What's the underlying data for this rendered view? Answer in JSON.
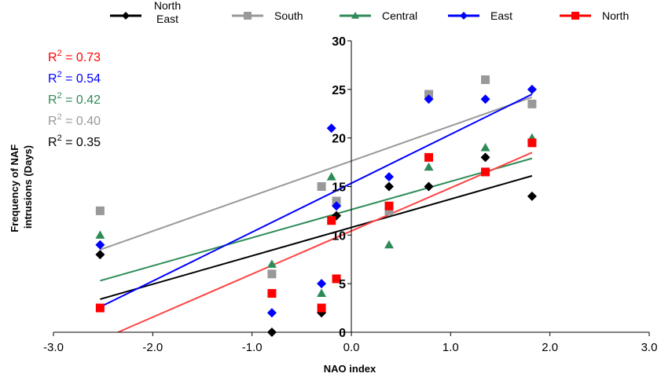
{
  "chart_data": {
    "type": "scatter",
    "xlabel": "NAO index",
    "ylabel": [
      "Frequency of NAF",
      "intrusions (Days)"
    ],
    "xlim": [
      -3.0,
      3.0
    ],
    "ylim": [
      0,
      30
    ],
    "xticks": [
      -3.0,
      -2.0,
      -1.0,
      0.0,
      1.0,
      2.0,
      3.0
    ],
    "xtick_labels": [
      "-3.0",
      "-2.0",
      "-1.0",
      "0.0",
      "1.0",
      "2.0",
      "3.0"
    ],
    "yticks": [
      0,
      5,
      10,
      15,
      20,
      25,
      30
    ],
    "ytick_labels": [
      "0",
      "5",
      "10",
      "15",
      "20",
      "25",
      "30"
    ],
    "grid": false,
    "legend_position": "top",
    "series": [
      {
        "name": "North East",
        "name_lines": [
          "North",
          "East"
        ],
        "color": "#000000",
        "marker": "diamond",
        "x": [
          -2.53,
          -0.8,
          -0.3,
          -0.15,
          0.38,
          0.78,
          1.35,
          1.82
        ],
        "y": [
          8,
          0,
          2,
          12,
          15,
          15,
          18,
          14
        ],
        "trend": {
          "x": [
            -2.53,
            1.82
          ],
          "y": [
            3.4,
            16.1
          ]
        },
        "r2_label": "R² = 0.35"
      },
      {
        "name": "South",
        "color": "#999999",
        "marker": "square",
        "x": [
          -2.53,
          -0.8,
          -0.3,
          -0.15,
          0.38,
          0.78,
          1.35,
          1.82
        ],
        "y": [
          12.5,
          6,
          15,
          13.5,
          12.5,
          24.5,
          26,
          23.5
        ],
        "trend": {
          "x": [
            -2.53,
            1.82
          ],
          "y": [
            8.5,
            24.2
          ]
        },
        "r2_label": "R² = 0.40"
      },
      {
        "name": "Central",
        "color": "#2e8b57",
        "marker": "triangle",
        "x": [
          -2.53,
          -0.8,
          -0.3,
          -0.2,
          0.38,
          0.78,
          1.35,
          1.82
        ],
        "y": [
          10,
          7,
          4,
          16,
          9,
          17,
          19,
          20
        ],
        "trend": {
          "x": [
            -2.53,
            1.82
          ],
          "y": [
            5.3,
            17.9
          ]
        },
        "r2_label": "R² = 0.42"
      },
      {
        "name": "East",
        "color": "#0000ff",
        "marker": "diamond",
        "x": [
          -2.53,
          -0.8,
          -0.3,
          -0.2,
          -0.15,
          0.38,
          0.78,
          1.35,
          1.82
        ],
        "y": [
          9,
          2,
          5,
          21,
          13,
          16,
          24,
          24,
          25
        ],
        "trend": {
          "x": [
            -2.53,
            1.82
          ],
          "y": [
            2.6,
            24.5
          ]
        },
        "r2_label": "R² = 0.54"
      },
      {
        "name": "North",
        "color": "#ff0000",
        "marker": "square",
        "x": [
          -2.53,
          -0.8,
          -0.3,
          -0.2,
          -0.15,
          0.38,
          0.78,
          1.35,
          1.82
        ],
        "y": [
          2.5,
          4,
          2.5,
          11.5,
          5.5,
          13,
          18,
          16.5,
          19.5
        ],
        "trend": {
          "x": [
            -2.35,
            1.82
          ],
          "y": [
            0,
            18.5
          ]
        },
        "r2_label": "R² = 0.73"
      }
    ],
    "r2_order": [
      4,
      3,
      2,
      1,
      0
    ]
  },
  "colors": {
    "r2": [
      "#ff0000",
      "#0000ff",
      "#2e8b57",
      "#999999",
      "#000000"
    ],
    "trend": {
      "North East": "#000000",
      "South": "#999999",
      "Central": "#2e8b57",
      "East": "#0000ff",
      "North": "#ff4444"
    }
  }
}
